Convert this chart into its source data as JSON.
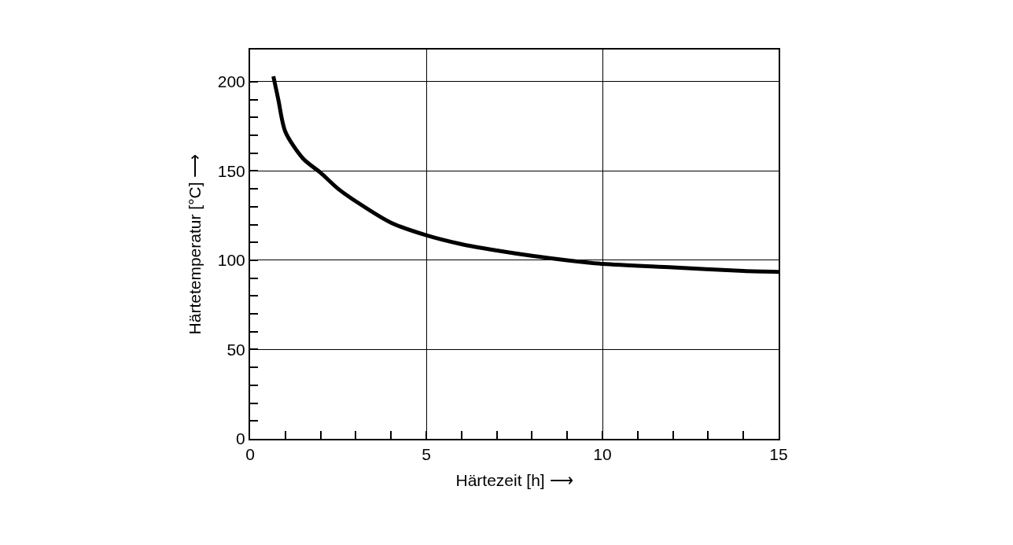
{
  "chart_data": {
    "type": "line",
    "xlabel": "Härtezeit [h] ⟶",
    "ylabel": "Härtetemperatur [°C] ⟶",
    "x": [
      0.66,
      0.8,
      1,
      1.5,
      2,
      2.5,
      3,
      4,
      5,
      6,
      7,
      8,
      9,
      10,
      12,
      14,
      15
    ],
    "series": [
      {
        "color": "#000000",
        "values": [
          203,
          190,
          172,
          157,
          149,
          140,
          133,
          121,
          114,
          109,
          105.5,
          102.5,
          100,
          98,
          96,
          94,
          93.5
        ]
      }
    ],
    "xlim": [
      0,
      15
    ],
    "ylim": [
      0,
      218
    ],
    "xticks": [
      0,
      {
        "value": 1,
        "label": null
      },
      {
        "value": 2,
        "label": null
      },
      {
        "value": 3,
        "label": null
      },
      {
        "value": 4,
        "label": null
      },
      5,
      {
        "value": 6,
        "label": null
      },
      {
        "value": 7,
        "label": null
      },
      {
        "value": 8,
        "label": null
      },
      {
        "value": 9,
        "label": null
      },
      10,
      {
        "value": 11,
        "label": null
      },
      {
        "value": 12,
        "label": null
      },
      {
        "value": 13,
        "label": null
      },
      {
        "value": 14,
        "label": null
      },
      15
    ],
    "yticks": [
      0,
      {
        "value": 10,
        "label": null
      },
      {
        "value": 20,
        "label": null
      },
      {
        "value": 30,
        "label": null
      },
      {
        "value": 40,
        "label": null
      },
      50,
      {
        "value": 60,
        "label": null
      },
      {
        "value": 70,
        "label": null
      },
      {
        "value": 80,
        "label": null
      },
      {
        "value": 90,
        "label": null
      },
      100,
      {
        "value": 110,
        "label": null
      },
      {
        "value": 120,
        "label": null
      },
      {
        "value": 130,
        "label": null
      },
      {
        "value": 140,
        "label": null
      },
      150,
      {
        "value": 160,
        "label": null
      },
      {
        "value": 170,
        "label": null
      },
      {
        "value": 180,
        "label": null
      },
      {
        "value": 190,
        "label": null
      },
      200
    ],
    "grid": true,
    "marker": "none",
    "line_style": "solid"
  }
}
